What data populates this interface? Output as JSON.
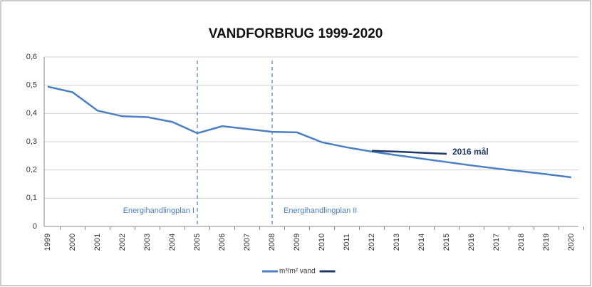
{
  "chart_data": {
    "type": "line",
    "title": "VANDFORBRUG 1999-2020",
    "categories": [
      "1999",
      "2000",
      "2001",
      "2002",
      "2003",
      "2004",
      "2005",
      "2006",
      "2007",
      "2008",
      "2009",
      "2010",
      "2011",
      "2012",
      "2013",
      "2014",
      "2015",
      "2016",
      "2017",
      "2018",
      "2019",
      "2020"
    ],
    "series": [
      {
        "name": "m³/m² vand",
        "color": "#4a7fc1",
        "values": [
          0.495,
          0.475,
          0.41,
          0.39,
          0.387,
          0.37,
          0.33,
          0.355,
          0.345,
          0.335,
          0.333,
          0.298,
          0.28,
          0.265,
          0.252,
          0.24,
          0.228,
          0.216,
          0.205,
          0.195,
          0.185,
          0.174
        ]
      },
      {
        "color": "#1f3864",
        "values": [
          null,
          null,
          null,
          null,
          null,
          null,
          null,
          null,
          null,
          null,
          null,
          null,
          null,
          0.268,
          0.265,
          0.261,
          0.257,
          null,
          null,
          null,
          null,
          null
        ]
      }
    ],
    "ylim": [
      0,
      0.6
    ],
    "yticks": [
      0,
      {
        "value": 0.1,
        "label": "0,1"
      },
      {
        "value": 0.2,
        "label": "0,2"
      },
      {
        "value": 0.3,
        "label": "0,3"
      },
      {
        "value": 0.4,
        "label": "0,4"
      },
      {
        "value": 0.5,
        "label": "0,5"
      },
      {
        "value": 0.6,
        "label": "0,6"
      }
    ],
    "grid": true,
    "annotations": [
      {
        "text": "Energihandlingplan I",
        "x": "2005",
        "style": "dashed-line"
      },
      {
        "text": "Energihandlingplan II",
        "x": "2008",
        "style": "dashed-line"
      },
      {
        "text": "2016 mål",
        "x": "2015",
        "y": 0.257
      }
    ],
    "legend": "bottom"
  }
}
